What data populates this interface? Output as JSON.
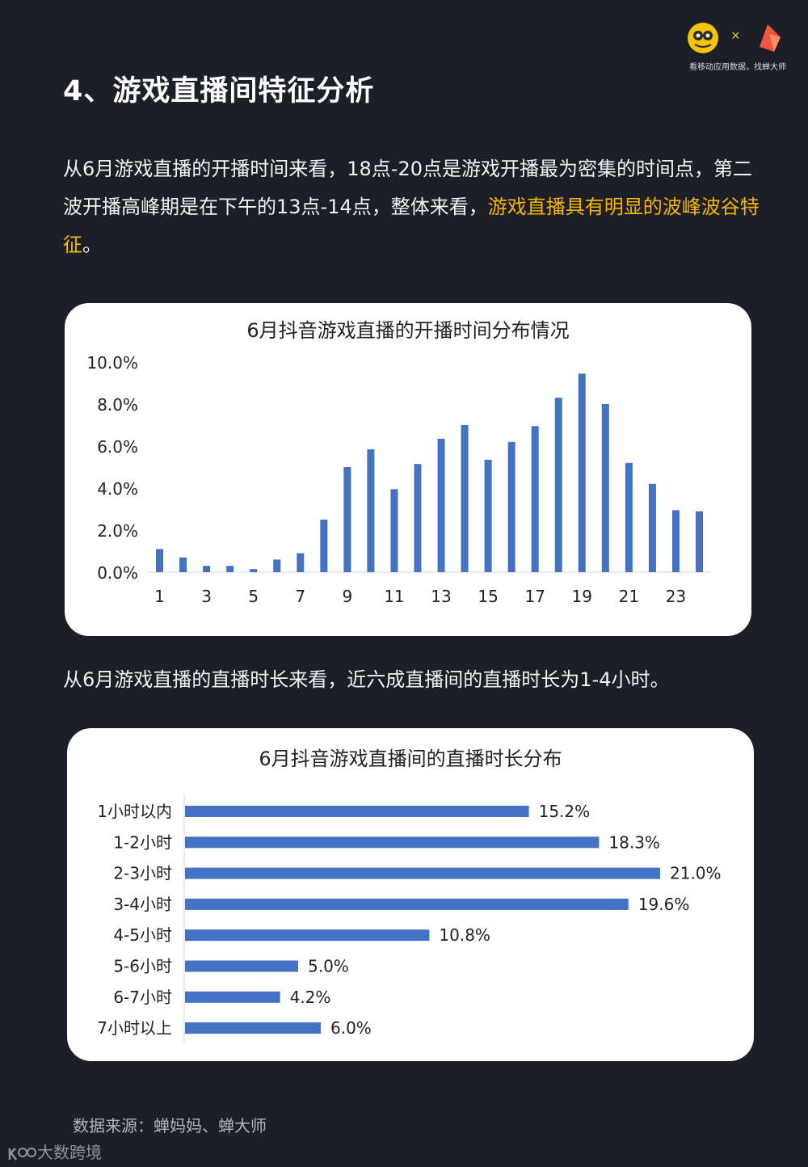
{
  "header": {
    "cross": "×",
    "logo_caption": "看移动应用数据，找蝉大师"
  },
  "heading": "4、游戏直播间特征分析",
  "paragraph1": {
    "text": "从6月游戏直播的开播时间来看，18点-20点是游戏开播最为密集的时间点，第二波开播高峰期是在下午的13点-14点，整体来看，",
    "highlight": "游戏直播具有明显的波峰波谷特征",
    "end": "。"
  },
  "paragraph2": "从6月游戏直播的直播时长来看，近六成直播间的直播时长为1-4小时。",
  "chart_data": [
    {
      "type": "bar",
      "title": "6月抖音游戏直播的开播时间分布情况",
      "categories": [
        1,
        2,
        3,
        4,
        5,
        6,
        7,
        8,
        9,
        10,
        11,
        12,
        13,
        14,
        15,
        16,
        17,
        18,
        19,
        20,
        21,
        22,
        23,
        24
      ],
      "x_tick_labels": [
        "1",
        "3",
        "5",
        "7",
        "9",
        "11",
        "13",
        "15",
        "17",
        "19",
        "21",
        "23"
      ],
      "values": [
        1.1,
        0.7,
        0.3,
        0.3,
        0.15,
        0.6,
        0.9,
        2.5,
        5.0,
        5.85,
        3.95,
        5.15,
        6.35,
        7.0,
        5.35,
        6.2,
        6.95,
        8.3,
        9.45,
        8.0,
        5.2,
        4.2,
        2.95,
        2.9
      ],
      "ylim": [
        0,
        10
      ],
      "y_ticks": [
        "0.0%",
        "2.0%",
        "4.0%",
        "6.0%",
        "8.0%",
        "10.0%"
      ],
      "color": "#4472c4",
      "grid": false
    },
    {
      "type": "bar",
      "orientation": "horizontal",
      "title": "6月抖音游戏直播间的直播时长分布",
      "categories": [
        "1小时以内",
        "1-2小时",
        "2-3小时",
        "3-4小时",
        "4-5小时",
        "5-6小时",
        "6-7小时",
        "7小时以上"
      ],
      "values": [
        15.2,
        18.3,
        21.0,
        19.6,
        10.8,
        5.0,
        4.2,
        6.0
      ],
      "value_labels": [
        "15.2%",
        "18.3%",
        "21.0%",
        "19.6%",
        "10.8%",
        "5.0%",
        "4.2%",
        "6.0%"
      ],
      "color": "#4472c4",
      "grid": false
    }
  ],
  "source": "数据来源：蝉妈妈、蝉大师",
  "watermark": "大数跨境"
}
